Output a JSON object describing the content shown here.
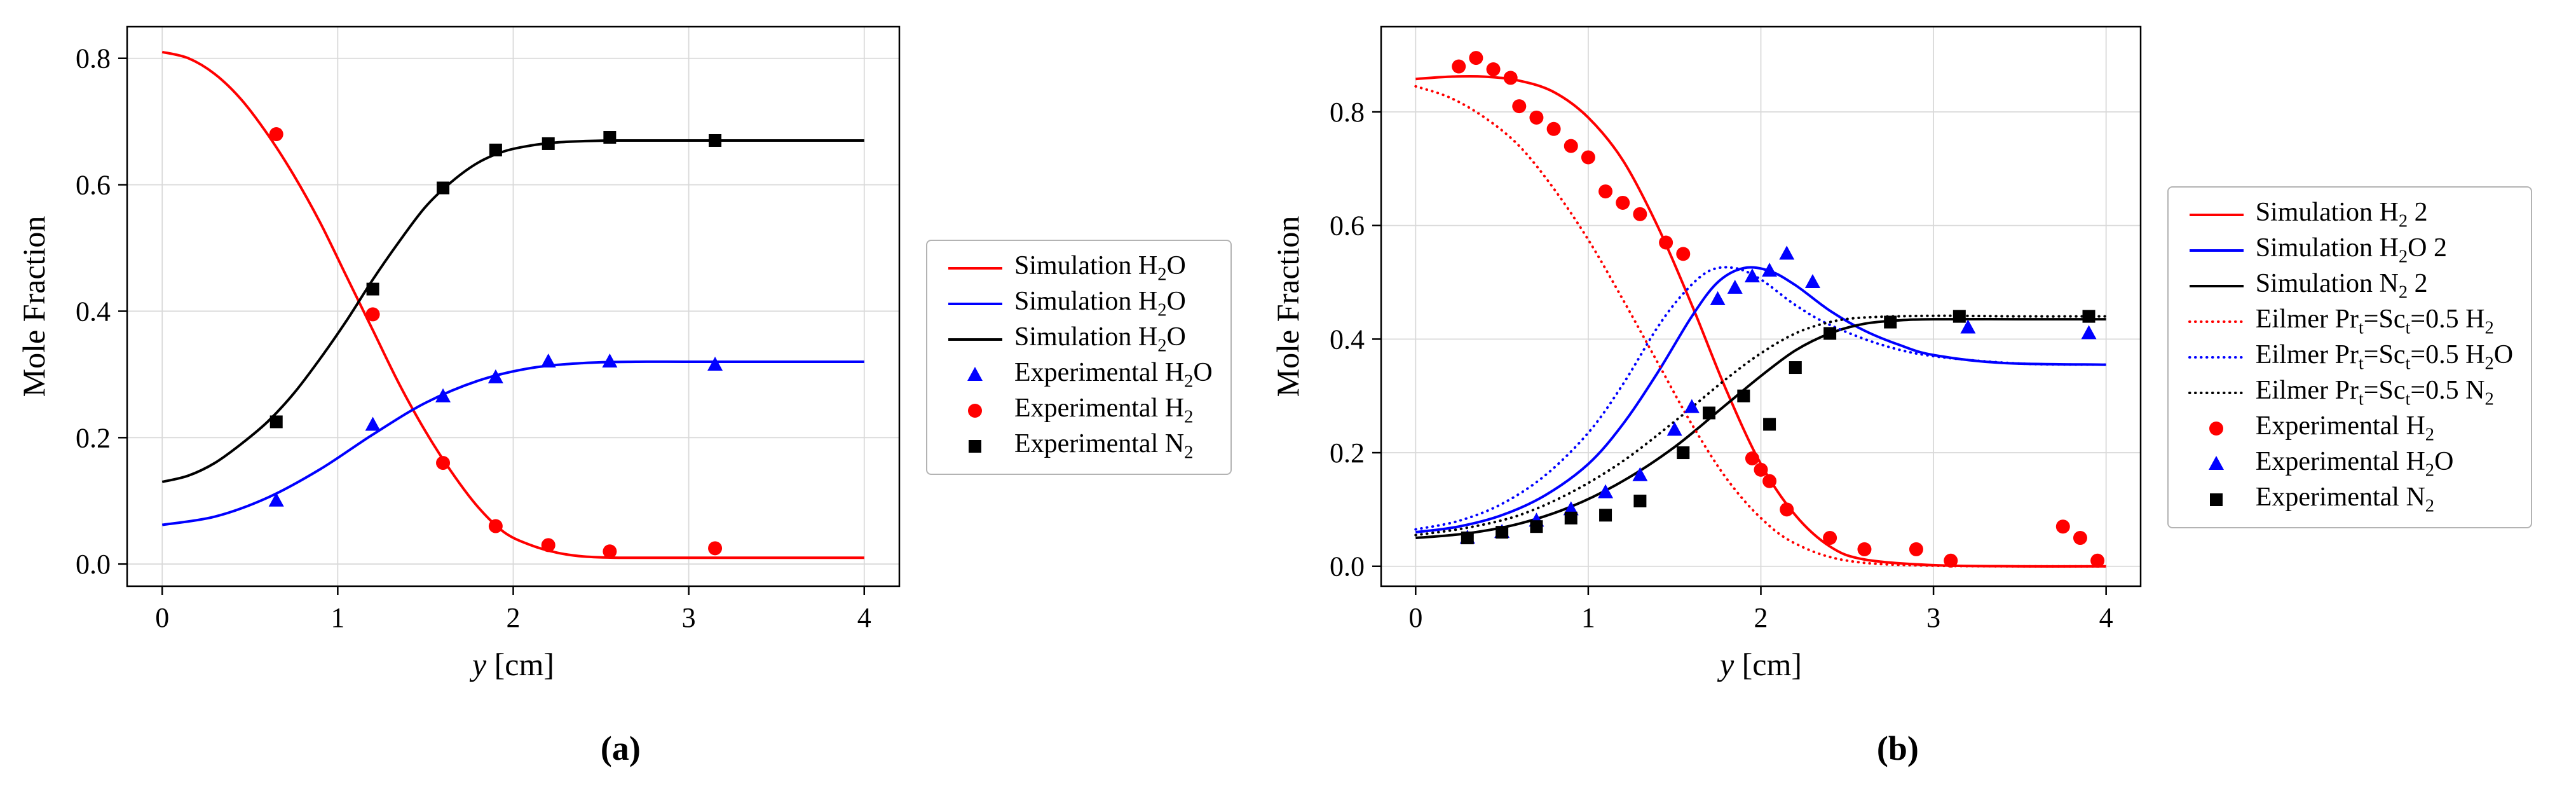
{
  "page": {
    "background": "#ffffff"
  },
  "colors": {
    "grid": "#d9d9d9",
    "axis": "#000000",
    "red": "#ff0000",
    "blue": "#0000ff",
    "black": "#000000",
    "legend_border": "#b3b3b3"
  },
  "panels": [
    {
      "caption": "(a)"
    },
    {
      "caption": "(b)"
    }
  ],
  "chart_data": [
    {
      "type": "line",
      "title": "",
      "xlabel": "y [cm]",
      "ylabel": "Mole Fraction",
      "xlim": [
        -0.2,
        4.2
      ],
      "ylim": [
        -0.035,
        0.85
      ],
      "xticks": [
        0,
        1,
        2,
        3,
        4
      ],
      "xtick_labels": [
        "0",
        "1",
        "2",
        "3",
        "4"
      ],
      "yticks": [
        0.0,
        0.2,
        0.4,
        0.6,
        0.8
      ],
      "ytick_labels": [
        "0.0",
        "0.2",
        "0.4",
        "0.6",
        "0.8"
      ],
      "grid": true,
      "legend_position": "outside-right",
      "series": [
        {
          "name": "Simulation H₂O",
          "mode": "line",
          "dash": "solid",
          "color": "#ff0000",
          "x": [
            0,
            0.15,
            0.3,
            0.45,
            0.6,
            0.75,
            0.9,
            1.05,
            1.2,
            1.35,
            1.5,
            1.65,
            1.8,
            1.95,
            2.1,
            2.25,
            2.4,
            2.6,
            3.0,
            3.5,
            4.0
          ],
          "y": [
            0.81,
            0.8,
            0.775,
            0.735,
            0.68,
            0.615,
            0.54,
            0.455,
            0.37,
            0.285,
            0.21,
            0.145,
            0.09,
            0.05,
            0.03,
            0.018,
            0.012,
            0.01,
            0.01,
            0.01,
            0.01
          ]
        },
        {
          "name": "Simulation H₂O",
          "mode": "line",
          "dash": "solid",
          "color": "#0000ff",
          "x": [
            0,
            0.3,
            0.6,
            0.9,
            1.2,
            1.5,
            1.8,
            2.1,
            2.4,
            2.7,
            3.0,
            3.5,
            4.0
          ],
          "y": [
            0.062,
            0.075,
            0.105,
            0.15,
            0.205,
            0.255,
            0.29,
            0.31,
            0.318,
            0.32,
            0.32,
            0.32,
            0.32
          ]
        },
        {
          "name": "Simulation H₂O",
          "mode": "line",
          "dash": "solid",
          "color": "#000000",
          "x": [
            0,
            0.15,
            0.3,
            0.45,
            0.6,
            0.75,
            0.9,
            1.05,
            1.2,
            1.35,
            1.5,
            1.65,
            1.8,
            1.95,
            2.1,
            2.25,
            2.4,
            2.6,
            3.0,
            3.5,
            4.0
          ],
          "y": [
            0.13,
            0.14,
            0.16,
            0.19,
            0.225,
            0.27,
            0.325,
            0.385,
            0.45,
            0.51,
            0.565,
            0.605,
            0.635,
            0.653,
            0.662,
            0.667,
            0.669,
            0.67,
            0.67,
            0.67,
            0.67
          ]
        },
        {
          "name": "Experimental H₂O",
          "mode": "scatter",
          "marker": "triangle",
          "color": "#0000ff",
          "x": [
            0.65,
            1.2,
            1.6,
            1.9,
            2.2,
            2.55,
            3.15
          ],
          "y": [
            0.1,
            0.22,
            0.265,
            0.295,
            0.32,
            0.32,
            0.315
          ]
        },
        {
          "name": "Experimental H₂",
          "mode": "scatter",
          "marker": "circle",
          "color": "#ff0000",
          "x": [
            0.65,
            1.2,
            1.6,
            1.9,
            2.2,
            2.55,
            3.15
          ],
          "y": [
            0.68,
            0.395,
            0.16,
            0.06,
            0.03,
            0.02,
            0.025
          ]
        },
        {
          "name": "Experimental N₂",
          "mode": "scatter",
          "marker": "square",
          "color": "#000000",
          "x": [
            0.65,
            1.2,
            1.6,
            1.9,
            2.2,
            2.55,
            3.15
          ],
          "y": [
            0.225,
            0.435,
            0.595,
            0.655,
            0.665,
            0.675,
            0.67
          ]
        }
      ]
    },
    {
      "type": "line",
      "title": "",
      "xlabel": "y [cm]",
      "ylabel": "Mole Fraction",
      "xlim": [
        -0.2,
        4.2
      ],
      "ylim": [
        -0.035,
        0.95
      ],
      "xticks": [
        0,
        1,
        2,
        3,
        4
      ],
      "xtick_labels": [
        "0",
        "1",
        "2",
        "3",
        "4"
      ],
      "yticks": [
        0.0,
        0.2,
        0.4,
        0.6,
        0.8
      ],
      "ytick_labels": [
        "0.0",
        "0.2",
        "0.4",
        "0.6",
        "0.8"
      ],
      "grid": true,
      "legend_position": "outside-right",
      "series": [
        {
          "name": "Simulation H₂ 2",
          "mode": "line",
          "dash": "solid",
          "color": "#ff0000",
          "x": [
            0,
            0.2,
            0.4,
            0.6,
            0.8,
            1.0,
            1.2,
            1.4,
            1.6,
            1.8,
            2.0,
            2.2,
            2.4,
            2.6,
            3.0,
            3.5,
            4.0
          ],
          "y": [
            0.858,
            0.862,
            0.862,
            0.855,
            0.835,
            0.79,
            0.715,
            0.6,
            0.46,
            0.31,
            0.18,
            0.09,
            0.035,
            0.012,
            0.002,
            0.0,
            0.0
          ]
        },
        {
          "name": "Simulation H₂O 2",
          "mode": "line",
          "dash": "solid",
          "color": "#0000ff",
          "x": [
            0,
            0.25,
            0.5,
            0.75,
            1.0,
            1.2,
            1.4,
            1.6,
            1.75,
            1.9,
            2.05,
            2.2,
            2.4,
            2.6,
            2.8,
            3.0,
            3.4,
            4.0
          ],
          "y": [
            0.06,
            0.07,
            0.09,
            0.125,
            0.18,
            0.25,
            0.34,
            0.44,
            0.5,
            0.525,
            0.52,
            0.495,
            0.45,
            0.415,
            0.39,
            0.372,
            0.358,
            0.355
          ]
        },
        {
          "name": "Simulation N₂ 2",
          "mode": "line",
          "dash": "solid",
          "color": "#000000",
          "x": [
            0,
            0.3,
            0.6,
            0.9,
            1.2,
            1.5,
            1.8,
            2.0,
            2.2,
            2.4,
            2.6,
            2.8,
            3.0,
            3.5,
            4.0
          ],
          "y": [
            0.05,
            0.058,
            0.075,
            0.105,
            0.15,
            0.21,
            0.285,
            0.335,
            0.38,
            0.41,
            0.427,
            0.433,
            0.435,
            0.435,
            0.435
          ]
        },
        {
          "name": "Eilmer Prₜ=Scₜ=0.5 H₂",
          "mode": "line",
          "dash": "dotted",
          "color": "#ff0000",
          "x": [
            0,
            0.2,
            0.4,
            0.6,
            0.8,
            1.0,
            1.2,
            1.4,
            1.6,
            1.8,
            2.0,
            2.2,
            2.5,
            3.0,
            4.0
          ],
          "y": [
            0.845,
            0.825,
            0.79,
            0.74,
            0.665,
            0.575,
            0.47,
            0.36,
            0.25,
            0.155,
            0.085,
            0.04,
            0.01,
            0.001,
            0.0
          ]
        },
        {
          "name": "Eilmer Prₜ=Scₜ=0.5 H₂O",
          "mode": "line",
          "dash": "dotted",
          "color": "#0000ff",
          "x": [
            0,
            0.25,
            0.5,
            0.75,
            1.0,
            1.2,
            1.4,
            1.55,
            1.7,
            1.85,
            2.0,
            2.2,
            2.4,
            2.7,
            3.0,
            3.5,
            4.0
          ],
          "y": [
            0.065,
            0.08,
            0.11,
            0.16,
            0.235,
            0.32,
            0.42,
            0.48,
            0.52,
            0.525,
            0.505,
            0.46,
            0.425,
            0.39,
            0.37,
            0.357,
            0.355
          ]
        },
        {
          "name": "Eilmer Prₜ=Scₜ=0.5 N₂",
          "mode": "line",
          "dash": "dotted",
          "color": "#000000",
          "x": [
            0,
            0.3,
            0.6,
            0.9,
            1.2,
            1.5,
            1.8,
            2.0,
            2.2,
            2.4,
            2.6,
            3.0,
            3.5,
            4.0
          ],
          "y": [
            0.055,
            0.068,
            0.09,
            0.13,
            0.185,
            0.255,
            0.33,
            0.375,
            0.41,
            0.43,
            0.438,
            0.441,
            0.44,
            0.44
          ]
        },
        {
          "name": "Experimental H₂",
          "mode": "scatter",
          "marker": "circle",
          "color": "#ff0000",
          "x": [
            0.25,
            0.35,
            0.45,
            0.55,
            0.6,
            0.7,
            0.8,
            0.9,
            1.0,
            1.1,
            1.2,
            1.3,
            1.45,
            1.55,
            1.95,
            2.0,
            2.05,
            2.15,
            2.4,
            2.6,
            2.9,
            3.1,
            3.75,
            3.85,
            3.95
          ],
          "y": [
            0.88,
            0.895,
            0.875,
            0.86,
            0.81,
            0.79,
            0.77,
            0.74,
            0.72,
            0.66,
            0.64,
            0.62,
            0.57,
            0.55,
            0.19,
            0.17,
            0.15,
            0.1,
            0.05,
            0.03,
            0.03,
            0.01,
            0.07,
            0.05,
            0.01
          ]
        },
        {
          "name": "Experimental H₂O",
          "mode": "scatter",
          "marker": "triangle",
          "color": "#0000ff",
          "x": [
            0.3,
            0.5,
            0.7,
            0.9,
            1.1,
            1.3,
            1.5,
            1.6,
            1.75,
            1.85,
            1.95,
            2.05,
            2.15,
            2.3,
            3.2,
            3.9
          ],
          "y": [
            0.05,
            0.06,
            0.08,
            0.1,
            0.13,
            0.16,
            0.24,
            0.28,
            0.47,
            0.49,
            0.51,
            0.52,
            0.55,
            0.5,
            0.42,
            0.41
          ]
        },
        {
          "name": "Experimental N₂",
          "mode": "scatter",
          "marker": "square",
          "color": "#000000",
          "x": [
            0.3,
            0.5,
            0.7,
            0.9,
            1.1,
            1.3,
            1.55,
            1.7,
            1.9,
            2.05,
            2.2,
            2.4,
            2.75,
            3.15,
            3.9
          ],
          "y": [
            0.05,
            0.06,
            0.07,
            0.085,
            0.09,
            0.115,
            0.2,
            0.27,
            0.3,
            0.25,
            0.35,
            0.41,
            0.43,
            0.44,
            0.44
          ]
        }
      ]
    }
  ]
}
